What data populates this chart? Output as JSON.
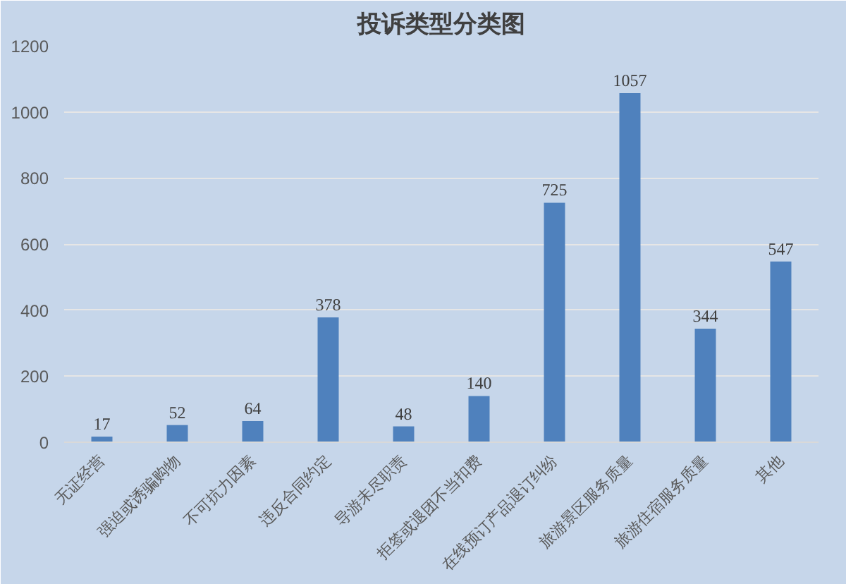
{
  "chart_data": {
    "type": "bar",
    "title": "投诉类型分类图",
    "categories": [
      "无证经营",
      "强迫或诱骗购物",
      "不可抗力因素",
      "违反合同约定",
      "导游未尽职责",
      "拒签或退团不当扣费",
      "在线预订产品退订纠纷",
      "旅游景区服务质量",
      "旅游住宿服务质量",
      "其他"
    ],
    "values": [
      17,
      52,
      64,
      378,
      48,
      140,
      725,
      1057,
      344,
      547
    ],
    "color": "#4f81bd",
    "ylim": [
      0,
      1200
    ],
    "yticks": [
      0,
      200,
      400,
      600,
      800,
      1000,
      1200
    ],
    "grid": "y",
    "data_labels": true
  }
}
